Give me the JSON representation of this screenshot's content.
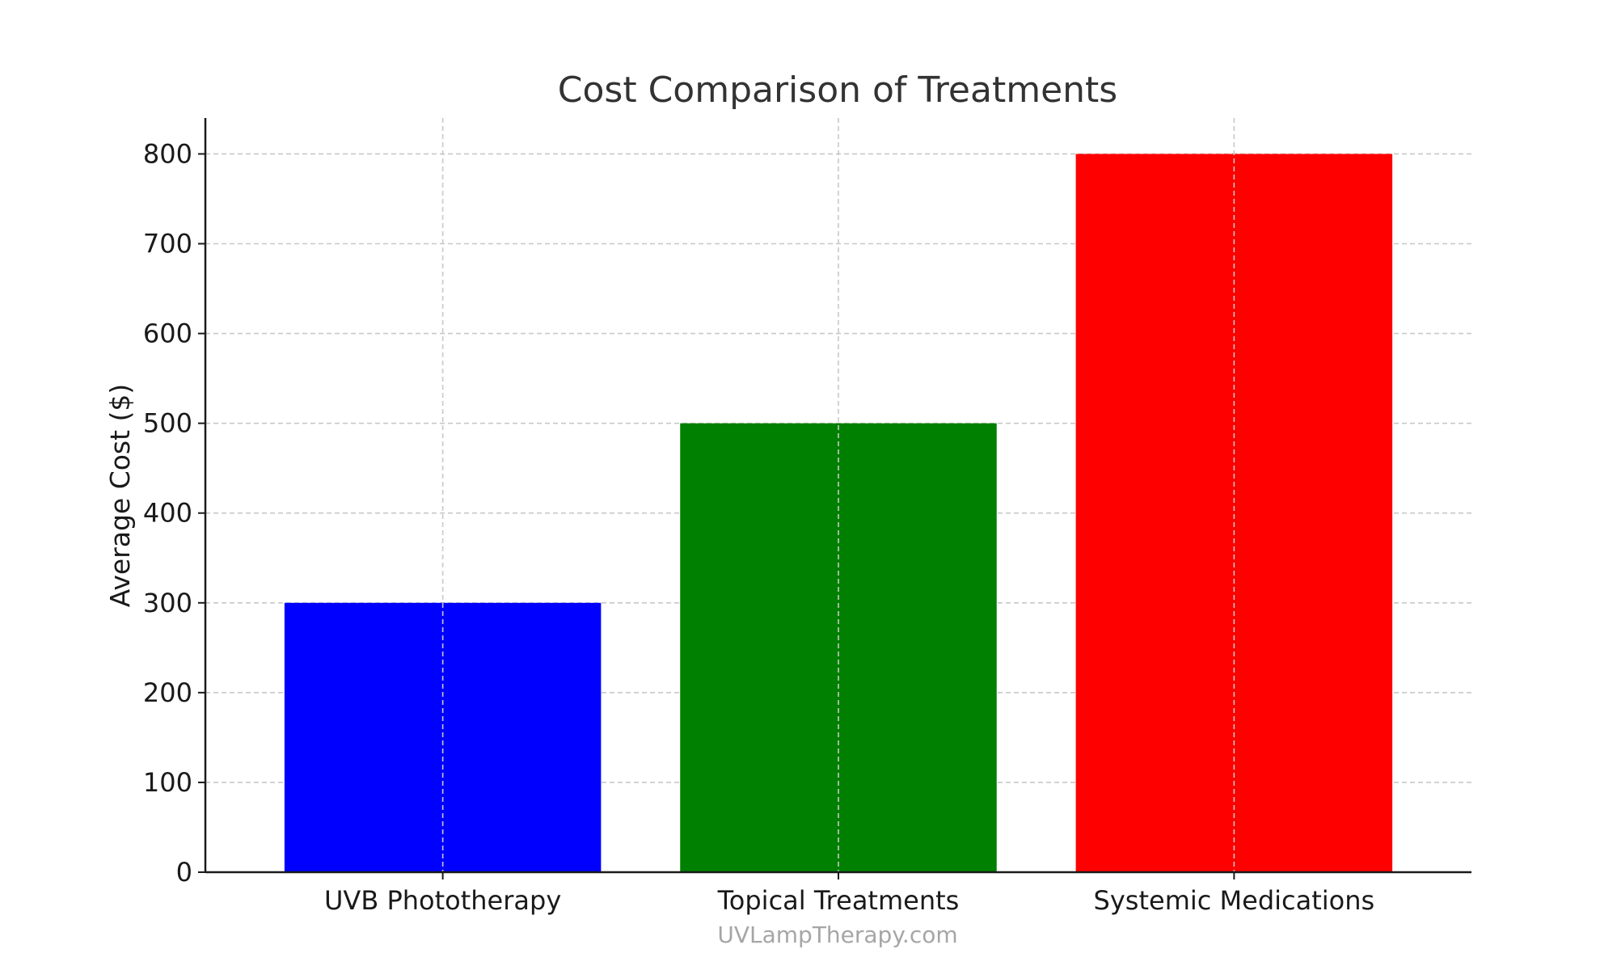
{
  "chart_data": {
    "type": "bar",
    "title": "Cost Comparison of Treatments",
    "xlabel": "",
    "ylabel": "Average Cost ($)",
    "categories": [
      "UVB Phototherapy",
      "Topical Treatments",
      "Systemic Medications"
    ],
    "values": [
      300,
      500,
      800
    ],
    "colors": [
      "#0000ff",
      "#008000",
      "#ff0000"
    ],
    "ylim": [
      0,
      840
    ],
    "yticks": [
      0,
      100,
      200,
      300,
      400,
      500,
      600,
      700,
      800
    ],
    "grid": true,
    "watermark": "UVLampTherapy.com"
  }
}
